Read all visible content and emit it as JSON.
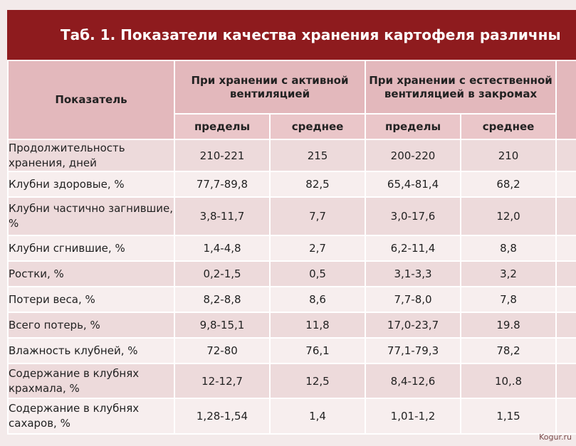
{
  "title": "Таб. 1. Показатели качества хранения картофеля различны",
  "header": {
    "indicator": "Показатель",
    "group_active": "При хранении с активной вентиляцией",
    "group_natural": "При хранении с естественной вентиляцией в закромах",
    "range": "пределы",
    "average": "среднее"
  },
  "rows": [
    {
      "label": "Продолжительность хранения, дней",
      "a_range": "210-221",
      "a_avg": "215",
      "n_range": "200-220",
      "n_avg": "210"
    },
    {
      "label": "Клубни здоровые, %",
      "a_range": "77,7-89,8",
      "a_avg": "82,5",
      "n_range": "65,4-81,4",
      "n_avg": "68,2"
    },
    {
      "label": "Клубни частично загнившие, %",
      "a_range": "3,8-11,7",
      "a_avg": "7,7",
      "n_range": "3,0-17,6",
      "n_avg": "12,0"
    },
    {
      "label": "Клубни сгнившие, %",
      "a_range": "1,4-4,8",
      "a_avg": "2,7",
      "n_range": "6,2-11,4",
      "n_avg": "8,8"
    },
    {
      "label": "Ростки, %",
      "a_range": "0,2-1,5",
      "a_avg": "0,5",
      "n_range": "3,1-3,3",
      "n_avg": "3,2"
    },
    {
      "label": "Потери веса, %",
      "a_range": "8,2-8,8",
      "a_avg": "8,6",
      "n_range": "7,7-8,0",
      "n_avg": "7,8"
    },
    {
      "label": "Всего потерь, %",
      "a_range": "9,8-15,1",
      "a_avg": "11,8",
      "n_range": "17,0-23,7",
      "n_avg": "19.8"
    },
    {
      "label": "Влажность клубней, %",
      "a_range": "72-80",
      "a_avg": "76,1",
      "n_range": "77,1-79,3",
      "n_avg": "78,2"
    },
    {
      "label": "Содержание в клубнях крахмала, %",
      "a_range": "12-12,7",
      "a_avg": "12,5",
      "n_range": "8,4-12,6",
      "n_avg": "10,.8"
    },
    {
      "label": "Содержание в клубнях сахаров, %",
      "a_range": "1,28-1,54",
      "a_avg": "1,4",
      "n_range": "1,01-1,2",
      "n_avg": "1,15"
    }
  ],
  "watermark": "Kogur.ru",
  "colors": {
    "title_bg": "#8e1b1e",
    "header_bg": "#e3b8bc",
    "row_dark": "#eddadb",
    "row_light": "#f7eeee"
  }
}
